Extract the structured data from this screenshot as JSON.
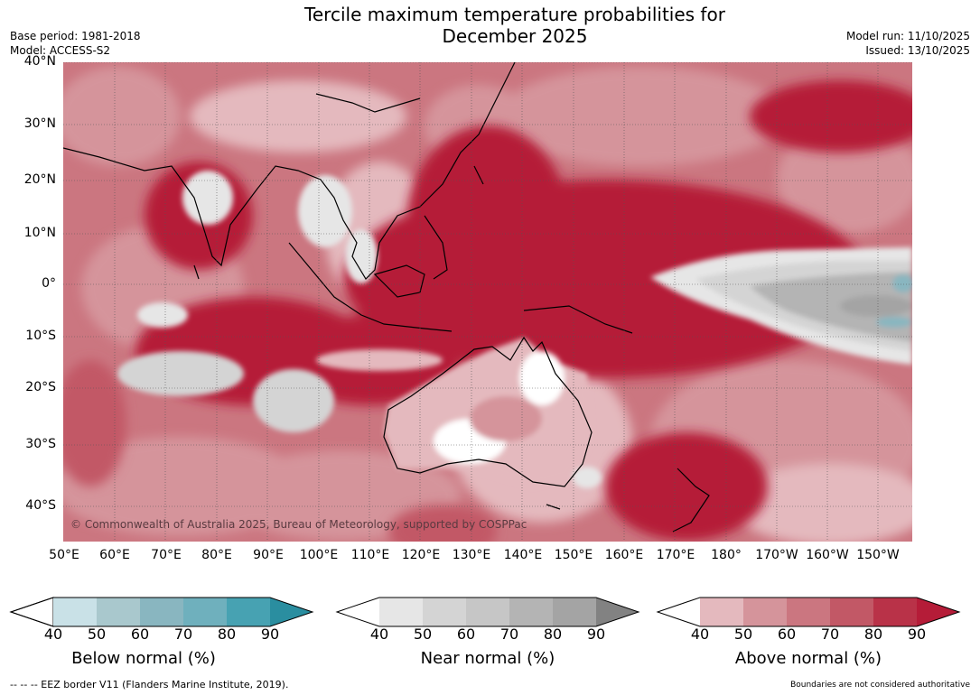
{
  "title_line1": "Tercile maximum temperature probabilities for",
  "title_line2": "December 2025",
  "base_period": "Base period: 1981-2018",
  "model": "Model: ACCESS-S2",
  "model_run": "Model run: 11/10/2025",
  "issued": "Issued: 13/10/2025",
  "lat_labels": [
    "40°N",
    "30°N",
    "20°N",
    "10°N",
    "0°",
    "10°S",
    "20°S",
    "30°S",
    "40°S"
  ],
  "lon_labels": [
    "50°E",
    "60°E",
    "70°E",
    "80°E",
    "90°E",
    "100°E",
    "110°E",
    "120°E",
    "130°E",
    "140°E",
    "150°E",
    "160°E",
    "170°E",
    "180°",
    "170°W",
    "160°W",
    "150°W"
  ],
  "copyright": "© Commonwealth of Australia 2025, Bureau of Meteorology, supported by COSPPac",
  "colorbars": [
    {
      "label": "Below normal (%)",
      "ticks": [
        "40",
        "50",
        "60",
        "70",
        "80",
        "90"
      ],
      "colors": [
        "#c9e1e7",
        "#a9c8cd",
        "#89b6c0",
        "#6fb0bd",
        "#47a2b2",
        "#2a8ea0"
      ]
    },
    {
      "label": "Near normal (%)",
      "ticks": [
        "40",
        "50",
        "60",
        "70",
        "80",
        "90"
      ],
      "colors": [
        "#e6e6e6",
        "#d4d4d4",
        "#c6c6c6",
        "#b4b4b4",
        "#a4a4a4",
        "#828282"
      ]
    },
    {
      "label": "Above normal (%)",
      "ticks": [
        "40",
        "50",
        "60",
        "70",
        "80",
        "90"
      ],
      "colors": [
        "#e4b9be",
        "#d5949b",
        "#cb7680",
        "#c25866",
        "#b93248",
        "#b51c38"
      ]
    }
  ],
  "footer_left": "--  --  -- EEZ border V11 (Flanders Marine Institute, 2019).",
  "footer_right": "Boundaries are not considered authoritative",
  "map_colors": {
    "above_90": "#b51c38",
    "above_80": "#c25866",
    "above_70": "#cb7680",
    "above_60": "#d5949b",
    "above_50": "#e4b9be",
    "white": "#ffffff",
    "near_40": "#e6e6e6",
    "near_50": "#d4d4d4",
    "near_60": "#b4b4b4",
    "near_70": "#a4a4a4",
    "below_50": "#89b6c0",
    "below_40": "#c9e1e7"
  }
}
